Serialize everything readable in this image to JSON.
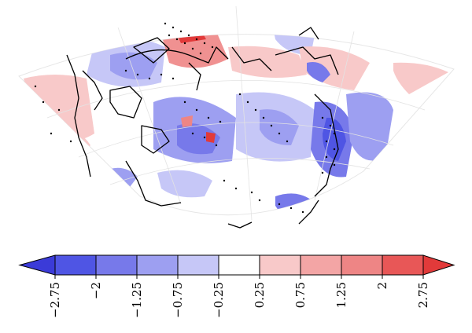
{
  "map": {
    "projection": "polar stereographic sector",
    "gridlines": true,
    "stippling": "significant",
    "coastlines": true
  },
  "colorbar": {
    "orientation": "horizontal",
    "extend": "both",
    "bins": [
      {
        "color": "#4f55e4"
      },
      {
        "color": "#7779ea"
      },
      {
        "color": "#9d9ff1"
      },
      {
        "color": "#c6c7f7"
      },
      {
        "color": "#ffffff"
      },
      {
        "color": "#f8c9c9"
      },
      {
        "color": "#f3a5a5"
      },
      {
        "color": "#ee8585"
      },
      {
        "color": "#e85757"
      }
    ],
    "end_colors": {
      "low": "#3b3bd8",
      "high": "#e23a3a"
    },
    "tick_labels": [
      "−2.75",
      "−2",
      "−1.25",
      "−0.75",
      "−0.25",
      "0.25",
      "0.75",
      "1.25",
      "2",
      "2.75"
    ]
  }
}
